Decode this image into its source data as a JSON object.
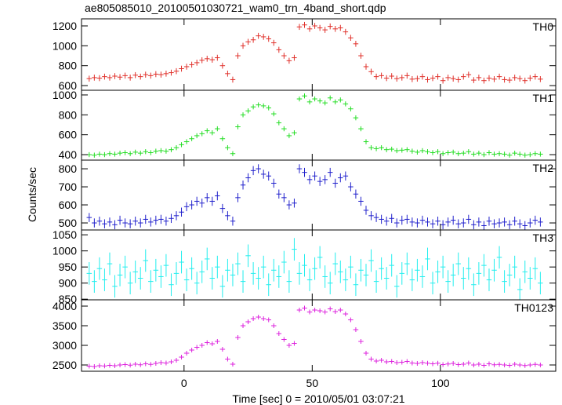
{
  "chart_data": [
    {
      "type": "step",
      "title": "ae805085010_20100501030721_wam0_trn_4band_short.qdp",
      "label": "TH0",
      "color": "#e0302a",
      "yerr": 30,
      "x": [
        -37,
        -35,
        -33,
        -31,
        -29,
        -27,
        -25,
        -23,
        -21,
        -19,
        -17,
        -15,
        -13,
        -11,
        -9,
        -7,
        -5,
        -3,
        -1,
        1,
        3,
        5,
        7,
        9,
        11,
        13,
        15,
        17,
        19,
        21,
        23,
        25,
        27,
        29,
        31,
        33,
        35,
        37,
        39,
        41,
        43,
        45,
        47,
        49,
        51,
        53,
        55,
        57,
        59,
        61,
        63,
        65,
        67,
        69,
        71,
        73,
        75,
        77,
        79,
        81,
        83,
        85,
        87,
        89,
        91,
        93,
        95,
        97,
        99,
        101,
        103,
        105,
        107,
        109,
        111,
        113,
        115,
        117,
        119,
        121,
        123,
        125,
        127,
        129,
        131,
        133,
        135,
        137,
        139
      ],
      "values": [
        670,
        680,
        675,
        690,
        680,
        695,
        685,
        700,
        680,
        705,
        690,
        710,
        700,
        715,
        710,
        720,
        730,
        745,
        770,
        790,
        810,
        830,
        855,
        870,
        860,
        880,
        800,
        720,
        660,
        900,
        1000,
        1040,
        1060,
        1100,
        1090,
        1070,
        1030,
        960,
        900,
        850,
        880,
        1190,
        1210,
        1170,
        1200,
        1180,
        1160,
        1195,
        1170,
        1180,
        1140,
        1080,
        1020,
        900,
        790,
        740,
        690,
        700,
        675,
        695,
        670,
        680,
        700,
        665,
        670,
        690,
        660,
        675,
        690,
        650,
        680,
        670,
        660,
        690,
        710,
        655,
        680,
        650,
        675,
        665,
        690,
        660,
        655,
        680,
        670,
        650,
        675,
        690,
        665
      ],
      "xlim": [
        -40,
        145
      ],
      "xticks": [
        0,
        50,
        100
      ],
      "ylim": [
        553,
        1271
      ],
      "yticks": [
        600,
        800,
        1000,
        1200
      ]
    },
    {
      "type": "step",
      "label": "TH1",
      "color": "#22dd22",
      "yerr": 25,
      "x": [
        -37,
        -35,
        -33,
        -31,
        -29,
        -27,
        -25,
        -23,
        -21,
        -19,
        -17,
        -15,
        -13,
        -11,
        -9,
        -7,
        -5,
        -3,
        -1,
        1,
        3,
        5,
        7,
        9,
        11,
        13,
        15,
        17,
        19,
        21,
        23,
        25,
        27,
        29,
        31,
        33,
        35,
        37,
        39,
        41,
        43,
        45,
        47,
        49,
        51,
        53,
        55,
        57,
        59,
        61,
        63,
        65,
        67,
        69,
        71,
        73,
        75,
        77,
        79,
        81,
        83,
        85,
        87,
        89,
        91,
        93,
        95,
        97,
        99,
        101,
        103,
        105,
        107,
        109,
        111,
        113,
        115,
        117,
        119,
        121,
        123,
        125,
        127,
        129,
        131,
        133,
        135,
        137,
        139
      ],
      "values": [
        400,
        395,
        405,
        400,
        410,
        405,
        415,
        420,
        410,
        425,
        415,
        430,
        420,
        435,
        440,
        435,
        450,
        470,
        500,
        530,
        560,
        590,
        610,
        640,
        620,
        660,
        560,
        470,
        410,
        680,
        800,
        840,
        880,
        900,
        890,
        870,
        810,
        720,
        660,
        590,
        620,
        960,
        990,
        930,
        960,
        940,
        920,
        970,
        930,
        950,
        910,
        860,
        770,
        660,
        530,
        470,
        460,
        470,
        450,
        455,
        440,
        445,
        450,
        435,
        425,
        440,
        430,
        420,
        430,
        410,
        420,
        425,
        410,
        415,
        430,
        405,
        415,
        400,
        420,
        405,
        410,
        405,
        395,
        415,
        405,
        395,
        400,
        410,
        405
      ],
      "xlim": [
        -40,
        145
      ],
      "xticks": [
        0,
        50,
        100
      ],
      "ylim": [
        345,
        1047
      ],
      "yticks": [
        400,
        600,
        800,
        1000
      ]
    },
    {
      "type": "step",
      "label": "TH2",
      "ylabel": "Counts/sec",
      "color": "#2020cc",
      "yerr": 25,
      "x": [
        -37,
        -35,
        -33,
        -31,
        -29,
        -27,
        -25,
        -23,
        -21,
        -19,
        -17,
        -15,
        -13,
        -11,
        -9,
        -7,
        -5,
        -3,
        -1,
        1,
        3,
        5,
        7,
        9,
        11,
        13,
        15,
        17,
        19,
        21,
        23,
        25,
        27,
        29,
        31,
        33,
        35,
        37,
        39,
        41,
        43,
        45,
        47,
        49,
        51,
        53,
        55,
        57,
        59,
        61,
        63,
        65,
        67,
        69,
        71,
        73,
        75,
        77,
        79,
        81,
        83,
        85,
        87,
        89,
        91,
        93,
        95,
        97,
        99,
        101,
        103,
        105,
        107,
        109,
        111,
        113,
        115,
        117,
        119,
        121,
        123,
        125,
        127,
        129,
        131,
        133,
        135,
        137,
        139
      ],
      "values": [
        530,
        500,
        510,
        495,
        505,
        490,
        515,
        500,
        495,
        510,
        500,
        520,
        505,
        515,
        520,
        510,
        525,
        540,
        560,
        590,
        600,
        620,
        610,
        640,
        620,
        650,
        580,
        540,
        510,
        640,
        710,
        750,
        790,
        800,
        770,
        760,
        720,
        660,
        640,
        600,
        610,
        800,
        780,
        740,
        760,
        730,
        740,
        780,
        720,
        750,
        760,
        700,
        660,
        620,
        570,
        540,
        530,
        520,
        510,
        525,
        500,
        515,
        520,
        505,
        500,
        515,
        505,
        495,
        510,
        490,
        505,
        515,
        495,
        500,
        520,
        490,
        505,
        485,
        510,
        495,
        500,
        505,
        490,
        510,
        495,
        485,
        500,
        515,
        505
      ],
      "xlim": [
        -40,
        145
      ],
      "xticks": [
        0,
        50,
        100
      ],
      "ylim": [
        461,
        848
      ],
      "yticks": [
        500,
        600,
        700,
        800
      ]
    },
    {
      "type": "step",
      "label": "TH3",
      "color": "#22eeee",
      "yerr": 35,
      "x": [
        -37,
        -35,
        -33,
        -31,
        -29,
        -27,
        -25,
        -23,
        -21,
        -19,
        -17,
        -15,
        -13,
        -11,
        -9,
        -7,
        -5,
        -3,
        -1,
        1,
        3,
        5,
        7,
        9,
        11,
        13,
        15,
        17,
        19,
        21,
        23,
        25,
        27,
        29,
        31,
        33,
        35,
        37,
        39,
        41,
        43,
        45,
        47,
        49,
        51,
        53,
        55,
        57,
        59,
        61,
        63,
        65,
        67,
        69,
        71,
        73,
        75,
        77,
        79,
        81,
        83,
        85,
        87,
        89,
        91,
        93,
        95,
        97,
        99,
        101,
        103,
        105,
        107,
        109,
        111,
        113,
        115,
        117,
        119,
        121,
        123,
        125,
        127,
        129,
        131,
        133,
        135,
        137,
        139
      ],
      "values": [
        930,
        905,
        945,
        910,
        960,
        890,
        925,
        950,
        900,
        935,
        915,
        970,
        905,
        940,
        920,
        955,
        895,
        930,
        965,
        910,
        945,
        900,
        935,
        975,
        915,
        950,
        890,
        940,
        925,
        960,
        905,
        985,
        930,
        915,
        950,
        895,
        940,
        920,
        965,
        905,
        1005,
        930,
        955,
        910,
        945,
        980,
        920,
        900,
        960,
        935,
        910,
        950,
        895,
        940,
        925,
        970,
        905,
        945,
        915,
        955,
        890,
        930,
        960,
        910,
        940,
        920,
        975,
        900,
        935,
        950,
        905,
        925,
        960,
        915,
        945,
        895,
        930,
        955,
        910,
        940,
        980,
        905,
        925,
        950,
        880,
        935,
        915,
        945,
        900
      ],
      "xlim": [
        -40,
        145
      ],
      "xticks": [
        0,
        50,
        100
      ],
      "ylim": [
        848,
        1065
      ],
      "yticks": [
        850,
        900,
        950,
        1000,
        1050
      ]
    },
    {
      "type": "step",
      "label": "TH0123",
      "xlabel": "Time [sec] 0 = 2010/05/01 03:07:21",
      "color": "#dd22dd",
      "yerr": 60,
      "x": [
        -37,
        -35,
        -33,
        -31,
        -29,
        -27,
        -25,
        -23,
        -21,
        -19,
        -17,
        -15,
        -13,
        -11,
        -9,
        -7,
        -5,
        -3,
        -1,
        1,
        3,
        5,
        7,
        9,
        11,
        13,
        15,
        17,
        19,
        21,
        23,
        25,
        27,
        29,
        31,
        33,
        35,
        37,
        39,
        41,
        43,
        45,
        47,
        49,
        51,
        53,
        55,
        57,
        59,
        61,
        63,
        65,
        67,
        69,
        71,
        73,
        75,
        77,
        79,
        81,
        83,
        85,
        87,
        89,
        91,
        93,
        95,
        97,
        99,
        101,
        103,
        105,
        107,
        109,
        111,
        113,
        115,
        117,
        119,
        121,
        123,
        125,
        127,
        129,
        131,
        133,
        135,
        137,
        139
      ],
      "values": [
        2470,
        2460,
        2480,
        2475,
        2490,
        2480,
        2500,
        2510,
        2495,
        2520,
        2505,
        2530,
        2515,
        2540,
        2560,
        2550,
        2580,
        2620,
        2700,
        2800,
        2880,
        2950,
        3000,
        3070,
        3040,
        3100,
        2900,
        2650,
        2520,
        3200,
        3500,
        3600,
        3680,
        3720,
        3680,
        3650,
        3500,
        3300,
        3150,
        3000,
        3050,
        3900,
        3950,
        3850,
        3900,
        3880,
        3850,
        3930,
        3860,
        3900,
        3800,
        3650,
        3400,
        3100,
        2800,
        2650,
        2600,
        2620,
        2580,
        2590,
        2560,
        2570,
        2590,
        2550,
        2540,
        2560,
        2545,
        2530,
        2545,
        2510,
        2525,
        2540,
        2510,
        2520,
        2550,
        2500,
        2520,
        2490,
        2530,
        2505,
        2515,
        2500,
        2490,
        2520,
        2500,
        2485,
        2500,
        2515,
        2500
      ],
      "xlim": [
        -40,
        145
      ],
      "xticks": [
        0,
        50,
        100
      ],
      "ylim": [
        2340,
        4160
      ],
      "yticks": [
        2500,
        3000,
        3500,
        4000
      ]
    }
  ]
}
